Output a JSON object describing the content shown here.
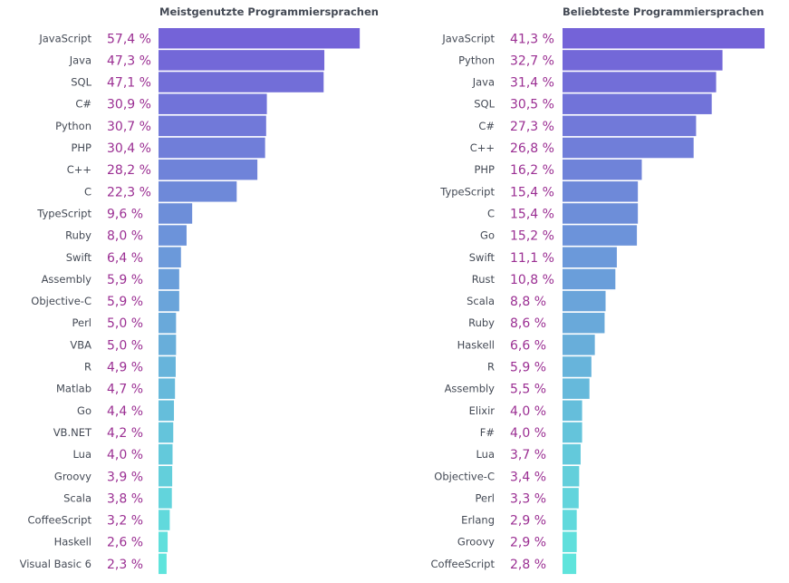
{
  "chart_data": [
    {
      "type": "bar",
      "orientation": "horizontal",
      "title": "Meistgenutzte Programmiersprachen",
      "categories": [
        "JavaScript",
        "Java",
        "SQL",
        "C#",
        "Python",
        "PHP",
        "C++",
        "C",
        "TypeScript",
        "Ruby",
        "Swift",
        "Assembly",
        "Objective-C",
        "Perl",
        "VBA",
        "R",
        "Matlab",
        "Go",
        "VB.NET",
        "Lua",
        "Groovy",
        "Scala",
        "CoffeeScript",
        "Haskell",
        "Visual Basic 6"
      ],
      "values": [
        57.4,
        47.3,
        47.1,
        30.9,
        30.7,
        30.4,
        28.2,
        22.3,
        9.6,
        8.0,
        6.4,
        5.9,
        5.9,
        5.0,
        5.0,
        4.9,
        4.7,
        4.4,
        4.2,
        4.0,
        3.9,
        3.8,
        3.2,
        2.6,
        2.3
      ],
      "value_labels": [
        "57,4 %",
        "47,3 %",
        "47,1 %",
        "30,9 %",
        "30,7 %",
        "30,4 %",
        "28,2 %",
        "22,3 %",
        "9,6 %",
        "8,0 %",
        "6,4 %",
        "5,9 %",
        "5,9 %",
        "5,0 %",
        "5,0 %",
        "4,9 %",
        "4,7 %",
        "4,4 %",
        "4,2 %",
        "4,0 %",
        "3,9 %",
        "3,8 %",
        "3,2 %",
        "2,6 %",
        "2,3 %"
      ],
      "unit": "%",
      "gradient_colors": [
        "#7463d8",
        "#5fe4dc"
      ],
      "grid": false,
      "legend": "none"
    },
    {
      "type": "bar",
      "orientation": "horizontal",
      "title": "Beliebteste Programmiersprachen",
      "categories": [
        "JavaScript",
        "Python",
        "Java",
        "SQL",
        "C#",
        "C++",
        "PHP",
        "TypeScript",
        "C",
        "Go",
        "Swift",
        "Rust",
        "Scala",
        "Ruby",
        "Haskell",
        "R",
        "Assembly",
        "Elixir",
        "F#",
        "Lua",
        "Objective-C",
        "Perl",
        "Erlang",
        "Groovy",
        "CoffeeScript"
      ],
      "values": [
        41.3,
        32.7,
        31.4,
        30.5,
        27.3,
        26.8,
        16.2,
        15.4,
        15.4,
        15.2,
        11.1,
        10.8,
        8.8,
        8.6,
        6.6,
        5.9,
        5.5,
        4.0,
        4.0,
        3.7,
        3.4,
        3.3,
        2.9,
        2.9,
        2.8
      ],
      "value_labels": [
        "41,3 %",
        "32,7 %",
        "31,4 %",
        "30,5 %",
        "27,3 %",
        "26,8 %",
        "16,2 %",
        "15,4 %",
        "15,4 %",
        "15,2 %",
        "11,1 %",
        "10,8 %",
        "8,8 %",
        "8,6 %",
        "6,6 %",
        "5,9 %",
        "5,5 %",
        "4,0 %",
        "4,0 %",
        "3,7 %",
        "3,4 %",
        "3,3 %",
        "2,9 %",
        "2,9 %",
        "2,8 %"
      ],
      "unit": "%",
      "gradient_colors": [
        "#7463d8",
        "#5fe4dc"
      ],
      "grid": false,
      "legend": "none"
    }
  ],
  "colors": {
    "label": "#444a55",
    "value": "#9b2f93"
  }
}
